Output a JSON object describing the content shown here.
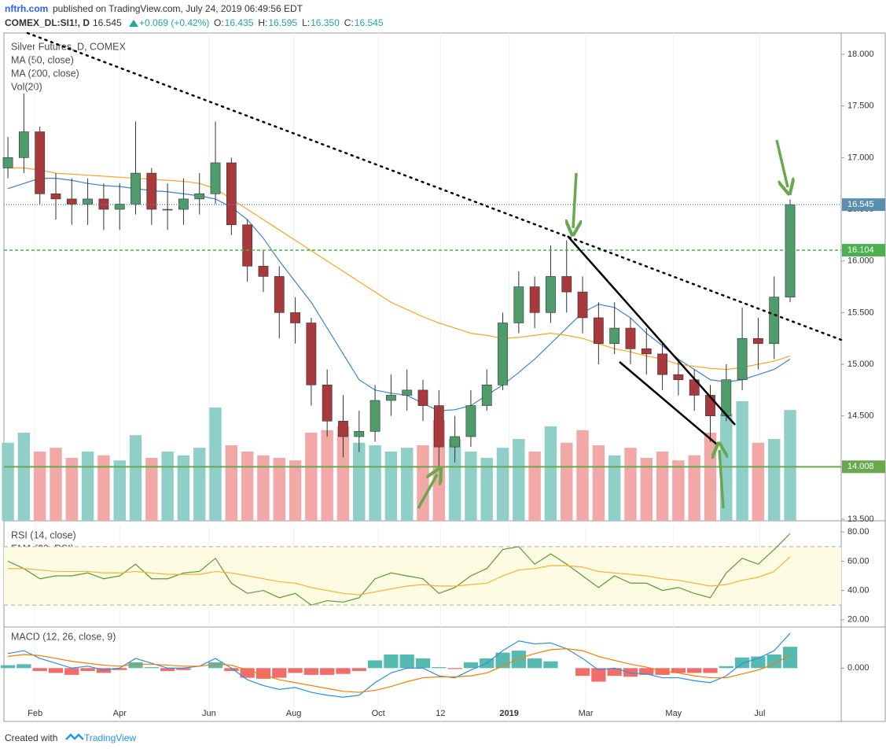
{
  "header": {
    "publisher": "nftrh.com",
    "published": " published on TradingView.com, July 24, 2019 06:49:56 EDT",
    "symbol": "COMEX_DL:SI1!, D",
    "last": "16.545",
    "change": "+0.069 (+0.42%)",
    "ohlc": [
      {
        "label": "O:",
        "value": "16.435"
      },
      {
        "label": "H:",
        "value": "16.595"
      },
      {
        "label": "L:",
        "value": "16.350"
      },
      {
        "label": "C:",
        "value": "16.545"
      }
    ]
  },
  "chart_data": [
    {
      "type": "candlestick",
      "title": "Silver Futures, D, COMEX",
      "up_color": "#4e9c6c",
      "down_color": "#a8393c",
      "xlim": [
        -0.25,
        52.2
      ],
      "xticks": [
        {
          "value": 1.7,
          "label": "Feb"
        },
        {
          "value": 7.0,
          "label": "Apr"
        },
        {
          "value": 12.6,
          "label": "Jun"
        },
        {
          "value": 17.9,
          "label": "Aug"
        },
        {
          "value": 23.2,
          "label": "Oct"
        },
        {
          "value": 27.1,
          "label": "12"
        },
        {
          "value": 31.4,
          "label": "2019"
        },
        {
          "value": 36.2,
          "label": "Mar"
        },
        {
          "value": 41.7,
          "label": "May"
        },
        {
          "value": 47.1,
          "label": "Jul"
        }
      ],
      "ylim": [
        13.485,
        18.206
      ],
      "yticks": [
        {
          "value": 13.5,
          "label": "13.500"
        },
        {
          "value": 14,
          "label": "14.000"
        },
        {
          "value": 14.5,
          "label": "14.500"
        },
        {
          "value": 15,
          "label": "15.000"
        },
        {
          "value": 15.5,
          "label": "15.500"
        },
        {
          "value": 16,
          "label": "16.000"
        },
        {
          "value": 16.5,
          "label": "16.500"
        },
        {
          "value": 17,
          "label": "17.000"
        },
        {
          "value": 17.5,
          "label": "17.500"
        },
        {
          "value": 18,
          "label": "18.000"
        }
      ],
      "open": [
        16.9,
        17.0,
        17.25,
        16.65,
        16.6,
        16.55,
        16.6,
        16.5,
        16.55,
        16.85,
        16.5,
        16.5,
        16.6,
        16.65,
        16.95,
        16.35,
        15.95,
        15.85,
        15.5,
        15.4,
        14.8,
        14.45,
        14.3,
        14.35,
        14.65,
        14.7,
        14.75,
        14.6,
        14.2,
        14.3,
        14.6,
        14.8,
        15.4,
        15.75,
        15.5,
        15.85,
        15.7,
        15.45,
        15.2,
        15.35,
        15.15,
        15.1,
        14.9,
        14.85,
        14.7,
        14.5,
        14.85,
        15.25,
        15.2,
        15.65
      ],
      "high": [
        17.2,
        17.62,
        17.3,
        16.85,
        16.8,
        16.8,
        16.75,
        16.75,
        17.35,
        16.9,
        16.75,
        16.8,
        16.85,
        17.35,
        17.0,
        16.4,
        16.1,
        15.95,
        15.65,
        15.45,
        14.95,
        14.7,
        14.55,
        14.8,
        14.9,
        14.95,
        14.85,
        14.75,
        14.5,
        14.75,
        14.95,
        15.5,
        15.9,
        15.85,
        16.15,
        16.2,
        15.85,
        15.6,
        15.6,
        15.45,
        15.35,
        15.2,
        15.05,
        14.95,
        14.8,
        15.0,
        15.55,
        15.45,
        15.85,
        16.595
      ],
      "low": [
        16.8,
        16.85,
        16.55,
        16.4,
        16.35,
        16.35,
        16.3,
        16.3,
        16.45,
        16.35,
        16.3,
        16.35,
        16.45,
        16.55,
        16.25,
        15.8,
        15.7,
        15.25,
        15.2,
        14.6,
        14.3,
        14.1,
        14.15,
        14.25,
        14.5,
        14.55,
        14.45,
        13.98,
        14.05,
        14.2,
        14.55,
        14.75,
        15.3,
        15.35,
        15.4,
        15.5,
        15.3,
        15.0,
        15.1,
        15.0,
        14.9,
        14.75,
        14.7,
        14.55,
        14.25,
        14.45,
        14.75,
        14.95,
        15.05,
        15.6
      ],
      "close": [
        17.0,
        17.25,
        16.65,
        16.6,
        16.55,
        16.6,
        16.5,
        16.55,
        16.85,
        16.5,
        16.5,
        16.6,
        16.65,
        16.95,
        16.35,
        15.95,
        15.85,
        15.5,
        15.4,
        14.8,
        14.45,
        14.3,
        14.35,
        14.65,
        14.7,
        14.75,
        14.6,
        14.2,
        14.3,
        14.6,
        14.8,
        15.4,
        15.75,
        15.5,
        15.85,
        15.7,
        15.45,
        15.2,
        15.35,
        15.15,
        15.1,
        14.9,
        14.85,
        14.7,
        14.5,
        14.85,
        15.25,
        15.2,
        15.65,
        16.545
      ],
      "series": [
        {
          "name": "MA (50, close)",
          "color": "#3d85c6",
          "values": [
            16.7,
            16.75,
            16.8,
            16.8,
            16.78,
            16.75,
            16.73,
            16.72,
            16.7,
            16.68,
            16.67,
            16.65,
            16.63,
            16.6,
            16.52,
            16.4,
            16.22,
            16.0,
            15.8,
            15.6,
            15.35,
            15.1,
            14.85,
            14.75,
            14.72,
            14.7,
            14.62,
            14.55,
            14.56,
            14.6,
            14.7,
            14.8,
            14.92,
            15.05,
            15.2,
            15.35,
            15.5,
            15.58,
            15.55,
            15.45,
            15.3,
            15.18,
            15.05,
            14.95,
            14.85,
            14.83,
            14.85,
            14.9,
            14.95,
            15.05
          ]
        },
        {
          "name": "MA (200, close)",
          "color": "#f6a623",
          "values": [
            16.9,
            16.9,
            16.88,
            16.85,
            16.84,
            16.83,
            16.82,
            16.81,
            16.8,
            16.79,
            16.78,
            16.77,
            16.75,
            16.7,
            16.6,
            16.5,
            16.4,
            16.3,
            16.2,
            16.1,
            16.0,
            15.9,
            15.8,
            15.7,
            15.6,
            15.53,
            15.46,
            15.4,
            15.35,
            15.3,
            15.28,
            15.25,
            15.26,
            15.28,
            15.3,
            15.28,
            15.25,
            15.2,
            15.15,
            15.12,
            15.08,
            15.05,
            15.0,
            14.98,
            14.96,
            14.95,
            14.97,
            15.0,
            15.03,
            15.08
          ]
        }
      ],
      "volume": {
        "name": "Vol(20)",
        "up_color": "#8fcfc8",
        "down_color": "#f2a8a6",
        "vlim": [
          0,
          100
        ],
        "values": [
          62,
          70,
          55,
          58,
          50,
          55,
          52,
          48,
          68,
          50,
          55,
          52,
          58,
          90,
          60,
          55,
          52,
          50,
          48,
          70,
          72,
          75,
          62,
          60,
          55,
          58,
          60,
          80,
          65,
          55,
          50,
          58,
          65,
          55,
          75,
          62,
          72,
          60,
          52,
          58,
          50,
          55,
          48,
          52,
          70,
          85,
          95,
          62,
          65,
          88
        ]
      },
      "levels": [
        {
          "value": 16.545,
          "color": "#5b8fb0",
          "style": "dotted"
        },
        {
          "value": 16.104,
          "color": "#4caf50",
          "style": "dashed"
        },
        {
          "value": 14.008,
          "color": "#6aa84f",
          "style": "solid"
        }
      ]
    },
    {
      "type": "line",
      "ylim": [
        15,
        85
      ],
      "yticks": [
        {
          "value": 20,
          "label": "20.00"
        },
        {
          "value": 40,
          "label": "40.00"
        },
        {
          "value": 60,
          "label": "60.00"
        },
        {
          "value": 80,
          "label": "80.00"
        }
      ],
      "band": [
        30,
        70
      ],
      "band_color": "#fdfbe1",
      "series": [
        {
          "name": "RSI (14, close)",
          "color": "#5a9a3a",
          "values": [
            60,
            55,
            48,
            50,
            50,
            52,
            48,
            50,
            58,
            48,
            48,
            52,
            53,
            62,
            45,
            38,
            40,
            35,
            38,
            30,
            33,
            32,
            35,
            48,
            52,
            50,
            48,
            38,
            42,
            50,
            55,
            68,
            70,
            58,
            65,
            58,
            50,
            42,
            50,
            45,
            45,
            40,
            42,
            38,
            35,
            52,
            62,
            58,
            68,
            79
          ]
        },
        {
          "name": "EMA (20, RSI)",
          "color": "#f5b335",
          "values": [
            55,
            55,
            54,
            53,
            53,
            53,
            52,
            52,
            53,
            52,
            51,
            51,
            51,
            53,
            52,
            50,
            48,
            46,
            45,
            42,
            40,
            38,
            37,
            39,
            41,
            43,
            44,
            43,
            43,
            44,
            45,
            50,
            54,
            55,
            57,
            57,
            56,
            53,
            52,
            51,
            50,
            48,
            47,
            45,
            43,
            44,
            47,
            49,
            53,
            63
          ]
        }
      ]
    },
    {
      "type": "macd",
      "title": "MACD (12, 26, close, 9)",
      "ylim": [
        -0.55,
        0.4
      ],
      "yticks": [
        {
          "value": 0,
          "label": "0.000"
        }
      ],
      "hist_up": "#3aaea3",
      "hist_down": "#ef5350",
      "series": [
        {
          "color": "#2f8fe0",
          "values": [
            0.15,
            0.18,
            0.1,
            0.05,
            0.0,
            0.02,
            -0.02,
            0.0,
            0.1,
            0.05,
            0.0,
            0.0,
            0.02,
            0.1,
            0.0,
            -0.12,
            -0.18,
            -0.22,
            -0.2,
            -0.25,
            -0.28,
            -0.3,
            -0.28,
            -0.15,
            -0.05,
            0.0,
            0.0,
            -0.08,
            -0.1,
            -0.02,
            0.05,
            0.18,
            0.28,
            0.25,
            0.26,
            0.2,
            0.1,
            -0.02,
            0.0,
            -0.05,
            -0.06,
            -0.1,
            -0.1,
            -0.13,
            -0.15,
            -0.08,
            0.05,
            0.1,
            0.18,
            0.36
          ]
        },
        {
          "color": "#f57c00",
          "values": [
            0.12,
            0.14,
            0.13,
            0.1,
            0.07,
            0.05,
            0.03,
            0.02,
            0.04,
            0.04,
            0.03,
            0.02,
            0.02,
            0.04,
            0.03,
            -0.02,
            -0.07,
            -0.12,
            -0.15,
            -0.18,
            -0.21,
            -0.24,
            -0.25,
            -0.23,
            -0.19,
            -0.14,
            -0.1,
            -0.09,
            -0.09,
            -0.08,
            -0.05,
            0.02,
            0.1,
            0.15,
            0.19,
            0.2,
            0.18,
            0.12,
            0.08,
            0.04,
            0.01,
            -0.03,
            -0.05,
            -0.08,
            -0.1,
            -0.1,
            -0.06,
            -0.02,
            0.04,
            0.14
          ]
        }
      ]
    }
  ],
  "footer": {
    "created": "Created with",
    "brand": "TradingView"
  }
}
